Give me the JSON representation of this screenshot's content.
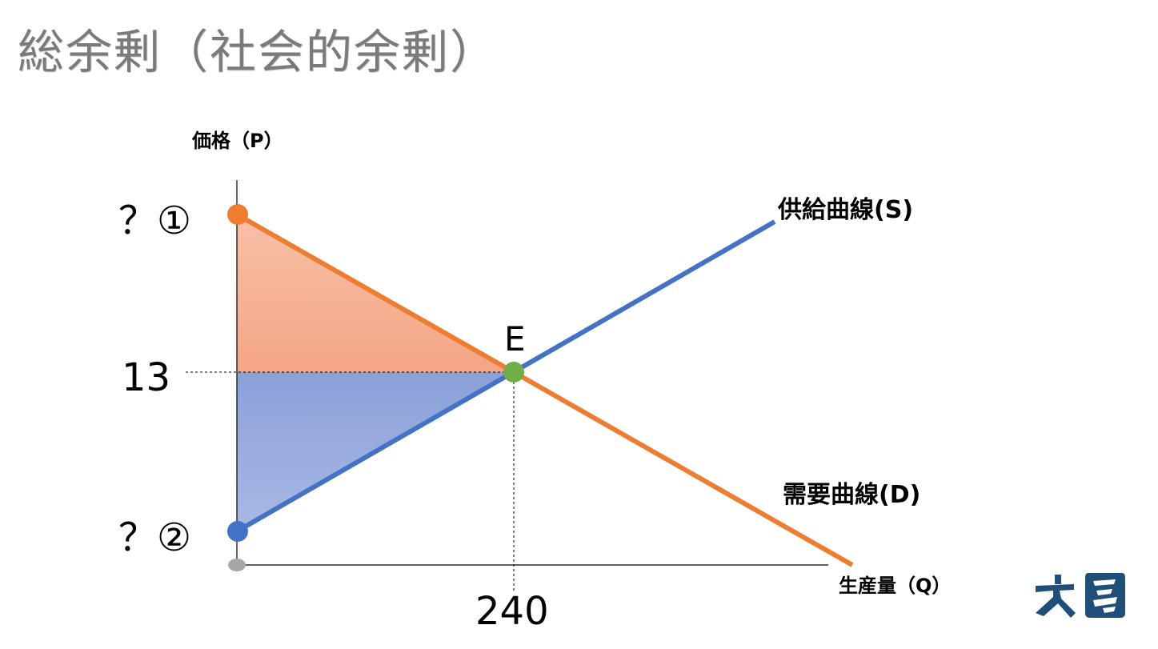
{
  "slide": {
    "title": "総余剰（社会的余剰）"
  },
  "diagram": {
    "y_axis_label": "価格（P）",
    "x_axis_label": "生産量（Q）",
    "price_top_label": "？①",
    "price_bottom_label": "？②",
    "equilibrium_price_label": "13",
    "equilibrium_quantity_label": "240",
    "equilibrium_point_label": "E",
    "supply_curve_label": "供給曲線(S)",
    "demand_curve_label": "需要曲線(D)"
  },
  "colors": {
    "demand": "#ed7d31",
    "supply": "#4472c4",
    "equilibrium": "#70ad47",
    "origin": "#a6a6a6",
    "consumer_surplus_top": "#f8c0a8",
    "consumer_surplus_bottom": "#f4a584",
    "producer_surplus_top": "#8aa0d8",
    "producer_surplus_bottom": "#a9b9e6",
    "logo": "#1f4e79",
    "title": "#7a7a7a"
  }
}
